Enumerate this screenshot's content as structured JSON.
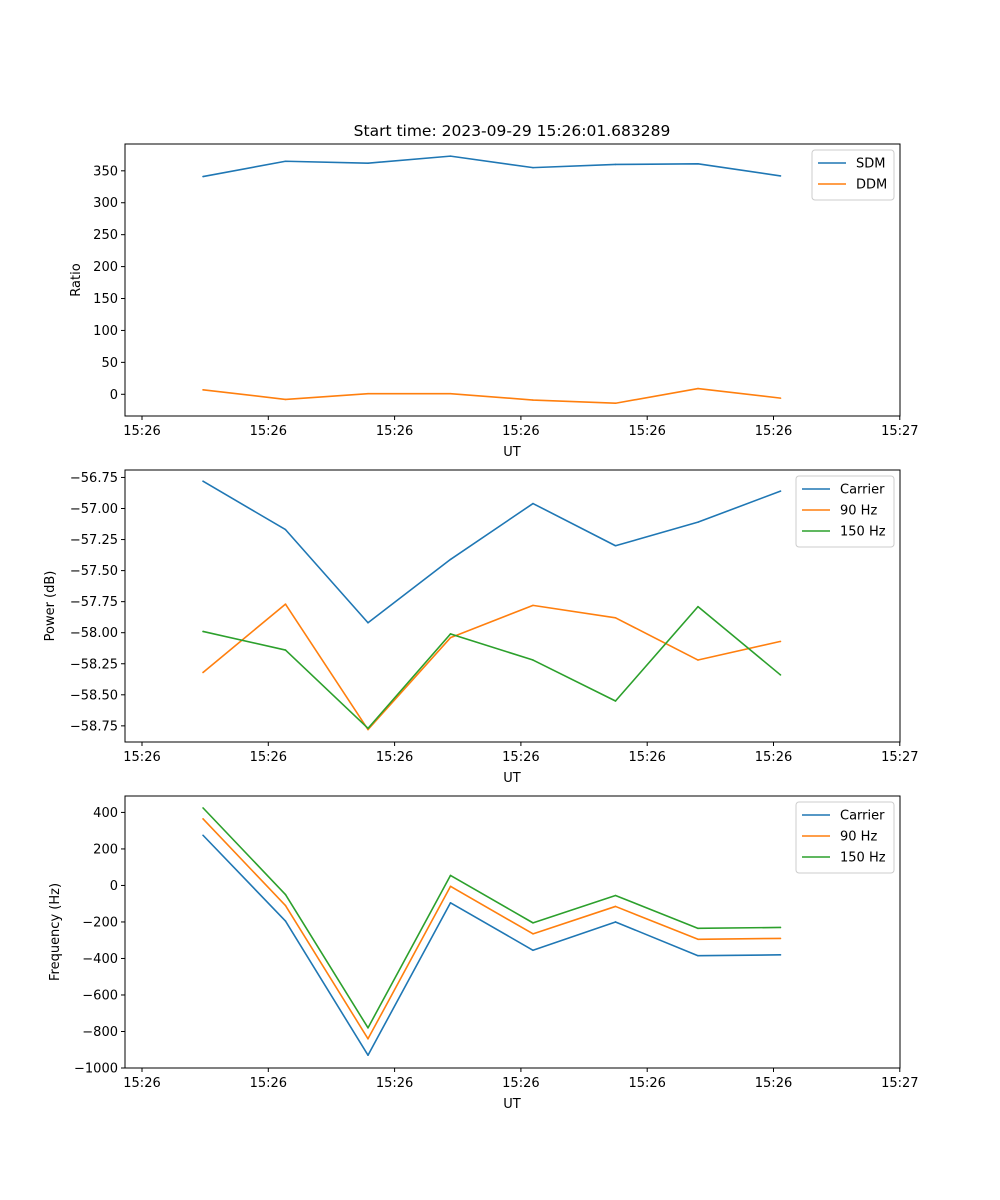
{
  "chart_data": [
    {
      "type": "line",
      "title": "Start time: 2023-09-29 15:26:01.683289",
      "xlabel": "UT",
      "ylabel": "Ratio",
      "x_tick_labels": [
        "15:26",
        "15:26",
        "15:26",
        "15:26",
        "15:26",
        "15:26",
        "15:27"
      ],
      "y_ticks": [
        0,
        50,
        100,
        150,
        200,
        250,
        300,
        350
      ],
      "y_tick_labels": [
        "0",
        "50",
        "100",
        "150",
        "200",
        "250",
        "300",
        "350"
      ],
      "ylim": [
        -34,
        392
      ],
      "legend_position": "upper right",
      "series": [
        {
          "name": "SDM",
          "color": "#1f77b4",
          "values": [
            341,
            365,
            362,
            373,
            355,
            360,
            361,
            342
          ]
        },
        {
          "name": "DDM",
          "color": "#ff7f0e",
          "values": [
            7,
            -8,
            1,
            1,
            -9,
            -14,
            9,
            -6
          ]
        }
      ]
    },
    {
      "type": "line",
      "title": "",
      "xlabel": "UT",
      "ylabel": "Power (dB)",
      "x_tick_labels": [
        "15:26",
        "15:26",
        "15:26",
        "15:26",
        "15:26",
        "15:26",
        "15:27"
      ],
      "y_ticks": [
        -58.75,
        -58.5,
        -58.25,
        -58.0,
        -57.75,
        -57.5,
        -57.25,
        -57.0,
        -56.75
      ],
      "y_tick_labels": [
        "−58.75",
        "−58.50",
        "−58.25",
        "−58.00",
        "−57.75",
        "−57.50",
        "−57.25",
        "−57.00",
        "−56.75"
      ],
      "ylim": [
        -58.88,
        -56.69
      ],
      "legend_position": "upper right",
      "series": [
        {
          "name": "Carrier",
          "color": "#1f77b4",
          "values": [
            -56.78,
            -57.17,
            -57.92,
            -57.41,
            -56.96,
            -57.3,
            -57.11,
            -56.86
          ]
        },
        {
          "name": "90 Hz",
          "color": "#ff7f0e",
          "values": [
            -58.32,
            -57.77,
            -58.78,
            -58.04,
            -57.78,
            -57.88,
            -58.22,
            -58.07
          ]
        },
        {
          "name": "150 Hz",
          "color": "#2ca02c",
          "values": [
            -57.99,
            -58.14,
            -58.77,
            -58.01,
            -58.22,
            -58.55,
            -57.79,
            -58.34
          ]
        }
      ]
    },
    {
      "type": "line",
      "title": "",
      "xlabel": "UT",
      "ylabel": "Frequency (Hz)",
      "x_tick_labels": [
        "15:26",
        "15:26",
        "15:26",
        "15:26",
        "15:26",
        "15:26",
        "15:27"
      ],
      "y_ticks": [
        -1000,
        -800,
        -600,
        -400,
        -200,
        0,
        200,
        400
      ],
      "y_tick_labels": [
        "−1000",
        "−800",
        "−600",
        "−400",
        "−200",
        "0",
        "200",
        "400"
      ],
      "ylim": [
        -1000,
        490
      ],
      "legend_position": "upper right",
      "series": [
        {
          "name": "Carrier",
          "color": "#1f77b4",
          "values": [
            275,
            -195,
            -930,
            -95,
            -355,
            -200,
            -385,
            -380
          ]
        },
        {
          "name": "90 Hz",
          "color": "#ff7f0e",
          "values": [
            365,
            -110,
            -840,
            -5,
            -265,
            -115,
            -295,
            -290
          ]
        },
        {
          "name": "150 Hz",
          "color": "#2ca02c",
          "values": [
            425,
            -50,
            -780,
            55,
            -205,
            -55,
            -235,
            -230
          ]
        }
      ]
    }
  ]
}
